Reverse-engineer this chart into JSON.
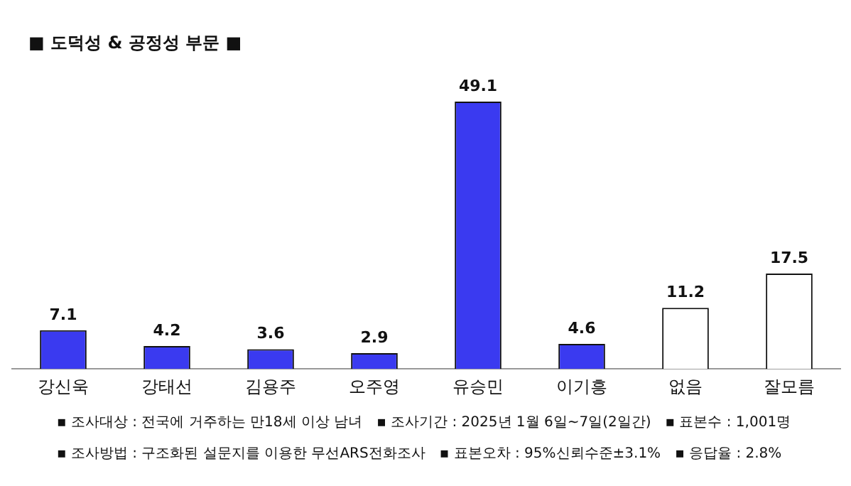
{
  "chart_data": {
    "type": "bar",
    "title": "■ 도덕성 & 공정성 부문 ■",
    "categories": [
      "강신욱",
      "강태선",
      "김용주",
      "오주영",
      "유승민",
      "이기흥",
      "없음",
      "잘모름"
    ],
    "values": [
      7.1,
      4.2,
      3.6,
      2.9,
      49.1,
      4.6,
      11.2,
      17.5
    ],
    "colors": [
      "#3a3af0",
      "#3a3af0",
      "#3a3af0",
      "#3a3af0",
      "#3a3af0",
      "#3a3af0",
      "#ffffff",
      "#ffffff"
    ],
    "data_labels": true,
    "grid": false,
    "legend": false,
    "annotations": [
      "▪ 조사대상 : 전국에 거주하는 만18세 이상 남녀",
      "▪ 조사기간 : 2025년 1월 6일~7일(2일간)",
      "▪ 표본수 : 1,001명",
      "▪ 조사방법 : 구조화된 설문지를 이용한 무선ARS전화조사",
      "▪ 표본오차 : 95%신뢰수준±3.1%",
      "▪ 응답율 : 2.8%"
    ]
  }
}
